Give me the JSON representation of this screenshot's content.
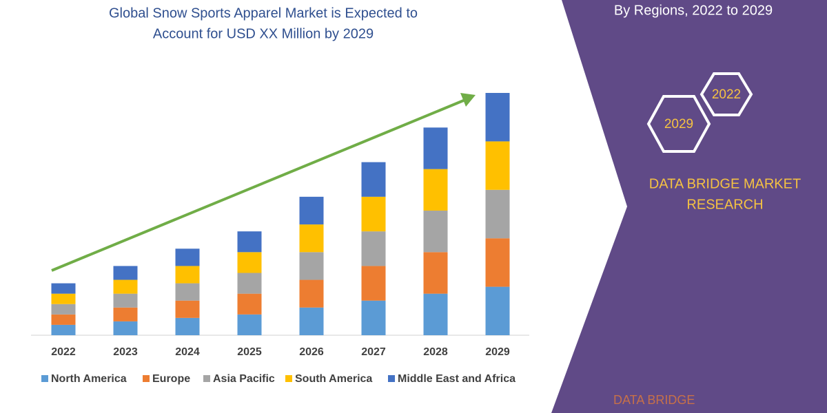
{
  "chart_data": {
    "type": "bar",
    "stacked": true,
    "title": [
      "Global Snow Sports Apparel Market is Expected to",
      "Account for USD XX Million by 2029"
    ],
    "subtitle": "By Regions, 2022 to 2029",
    "categories": [
      "2022",
      "2023",
      "2024",
      "2025",
      "2026",
      "2027",
      "2028",
      "2029"
    ],
    "series": [
      {
        "name": "North America",
        "color": "#5b9bd5",
        "values": [
          15,
          20,
          25,
          30,
          40,
          50,
          60,
          70
        ]
      },
      {
        "name": "Europe",
        "color": "#ed7d31",
        "values": [
          15,
          20,
          25,
          30,
          40,
          50,
          60,
          70
        ]
      },
      {
        "name": "Asia Pacific",
        "color": "#a5a5a5",
        "values": [
          15,
          20,
          25,
          30,
          40,
          50,
          60,
          70
        ]
      },
      {
        "name": "South America",
        "color": "#ffc000",
        "values": [
          15,
          20,
          25,
          30,
          40,
          50,
          60,
          70
        ]
      },
      {
        "name": "Middle East and Africa",
        "color": "#4472c4",
        "values": [
          15,
          20,
          25,
          30,
          40,
          50,
          60,
          70
        ]
      }
    ],
    "ylim": [
      0,
      350
    ]
  },
  "brand": {
    "hexagons": [
      "2022",
      "2029"
    ],
    "name": [
      "DATA BRIDGE MARKET",
      "RESEARCH"
    ],
    "logo": "DATA BRIDGE"
  }
}
